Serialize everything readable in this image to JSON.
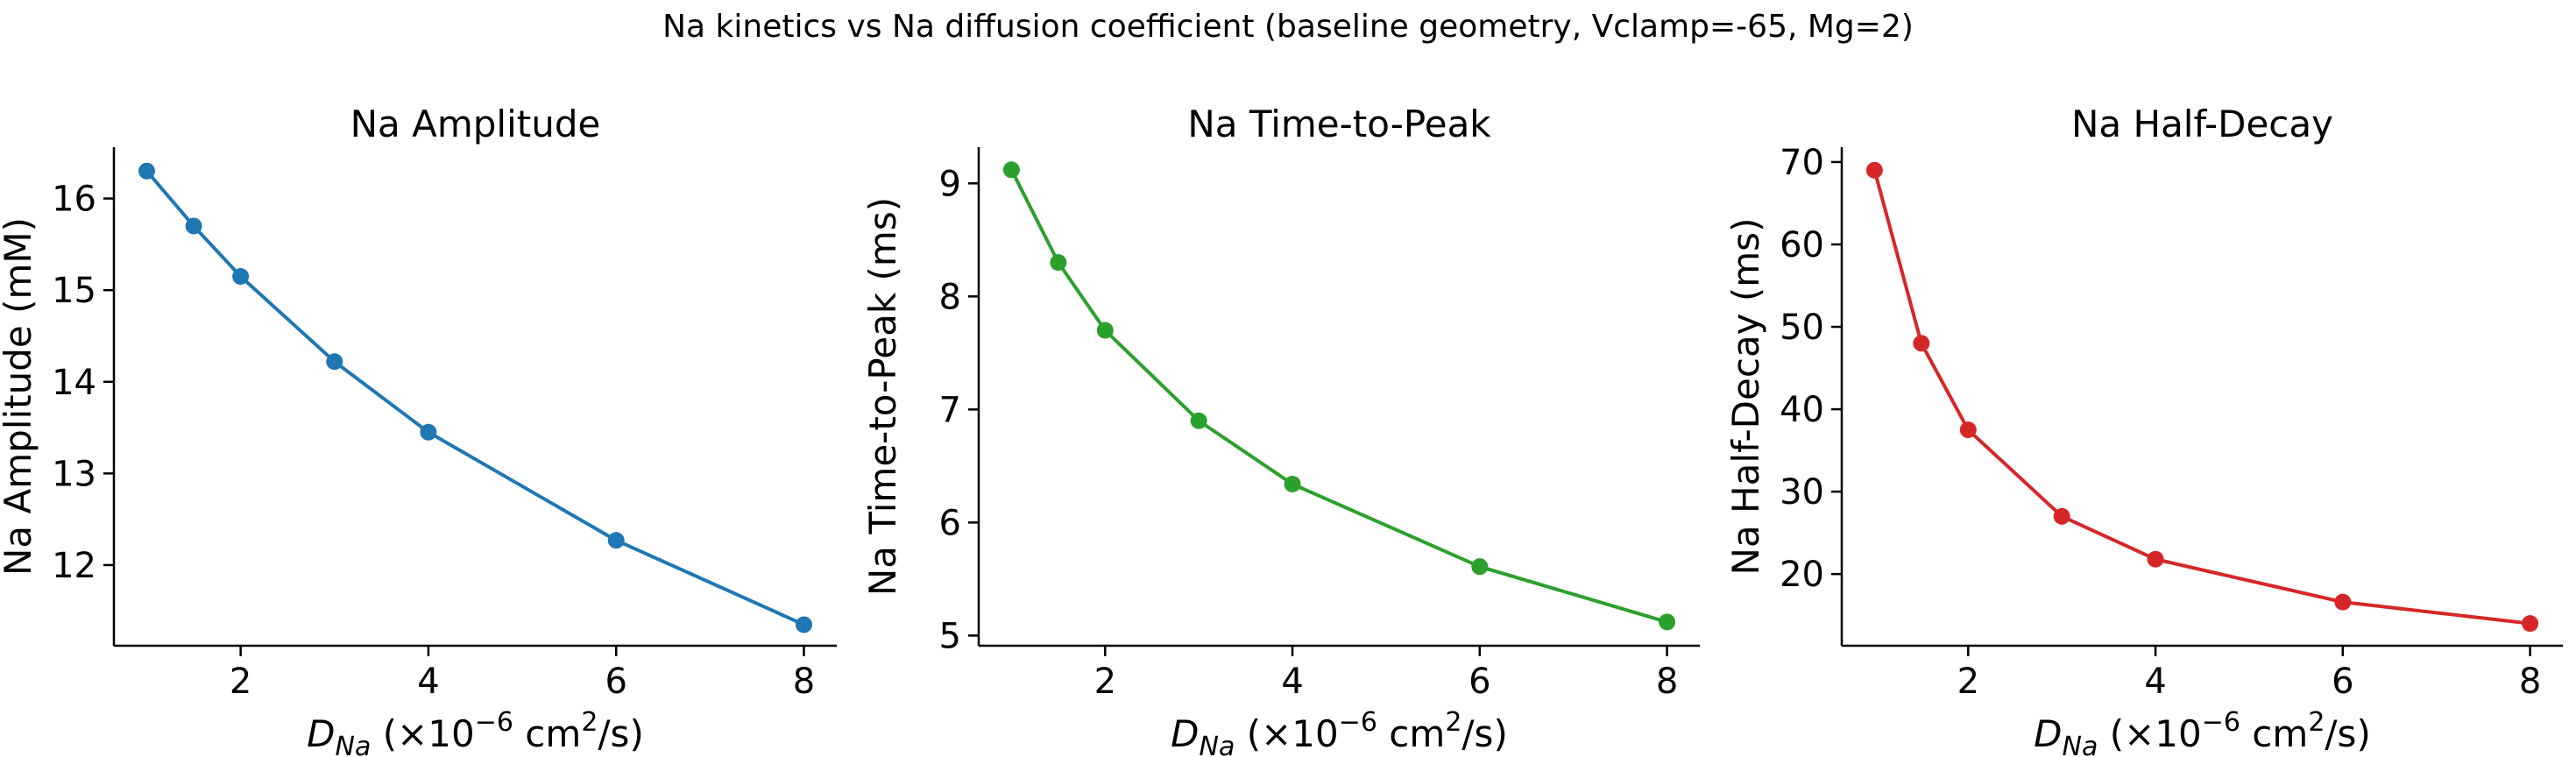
{
  "figure": {
    "suptitle": "Na kinetics vs Na diffusion coefficient (baseline geometry, Vclamp=-65, Mg=2)"
  },
  "xlabel_parts": {
    "symbol": "D",
    "subscript": "Na",
    "prefix": " (×10",
    "exponent": "−6",
    "unit": " cm",
    "unit_exponent": "2",
    "suffix": "/s)"
  },
  "chart_data": [
    {
      "type": "line",
      "title": "Na Amplitude",
      "ylabel": "Na Amplitude (mM)",
      "color": "#1f77b4",
      "x": [
        1,
        1.5,
        2,
        3,
        4,
        6,
        8
      ],
      "y": [
        16.3,
        15.7,
        15.15,
        14.22,
        13.45,
        12.27,
        11.35
      ],
      "xlim": [
        0.65,
        8.35
      ],
      "ylim": [
        11.12,
        16.56
      ],
      "xticks": [
        2,
        4,
        6,
        8
      ],
      "yticks": [
        12,
        13,
        14,
        15,
        16
      ],
      "grid": false,
      "marker": "circle"
    },
    {
      "type": "line",
      "title": "Na Time-to-Peak",
      "ylabel": "Na Time-to-Peak (ms)",
      "color": "#2ca02c",
      "x": [
        1,
        1.5,
        2,
        3,
        4,
        6,
        8
      ],
      "y": [
        9.12,
        8.3,
        7.7,
        6.9,
        6.34,
        5.61,
        5.12
      ],
      "xlim": [
        0.65,
        8.35
      ],
      "ylim": [
        4.91,
        9.32
      ],
      "xticks": [
        2,
        4,
        6,
        8
      ],
      "yticks": [
        5,
        6,
        7,
        8,
        9
      ],
      "grid": false,
      "marker": "circle"
    },
    {
      "type": "line",
      "title": "Na Half-Decay",
      "ylabel": "Na Half-Decay (ms)",
      "color": "#d62728",
      "x": [
        1,
        1.5,
        2,
        3,
        4,
        6,
        8
      ],
      "y": [
        69.0,
        48.0,
        37.5,
        27.0,
        21.8,
        16.6,
        14.0
      ],
      "xlim": [
        0.65,
        8.35
      ],
      "ylim": [
        11.3,
        71.8
      ],
      "xticks": [
        2,
        4,
        6,
        8
      ],
      "yticks": [
        20,
        30,
        40,
        50,
        60,
        70
      ],
      "grid": false,
      "marker": "circle"
    }
  ]
}
